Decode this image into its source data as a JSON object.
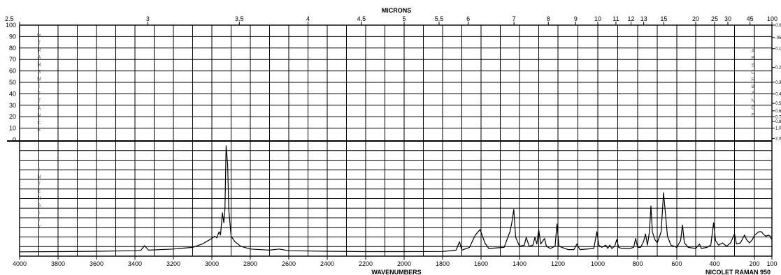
{
  "top_axis_title": "MICRONS",
  "bottom_axis_title": "WAVENUMBERS",
  "instrument": "NICOLET RAMAN 950",
  "left_upper_label": "% TRANSMITTANCE",
  "left_lower_label": "INTENSITY",
  "right_upper_label": "ABSORBANCE",
  "chart_data": {
    "type": "line",
    "x_axis": {
      "label": "WAVENUMBERS",
      "range": [
        4000,
        100
      ],
      "ticks": [
        4000,
        3800,
        3600,
        3400,
        3200,
        3000,
        2800,
        2600,
        2400,
        2200,
        2000,
        1800,
        1600,
        1400,
        1200,
        1000,
        800,
        600,
        400,
        200,
        100
      ]
    },
    "top_axis": {
      "label": "MICRONS",
      "ticks": [
        "2.5",
        "3",
        "3.5",
        "4",
        "4.5",
        "5",
        "5.5",
        "6",
        "7",
        "8",
        "9",
        "10",
        "11",
        "12",
        "13",
        "15",
        "20",
        "25",
        "30",
        "45",
        "100"
      ]
    },
    "transmittance_axis": {
      "label": "% TRANSMITTANCE",
      "range": [
        0,
        100
      ],
      "ticks": [
        "100",
        "90",
        "80",
        "70",
        "60",
        "50",
        "40",
        "30",
        "20",
        "10",
        "0"
      ]
    },
    "absorbance_axis": {
      "label": "ABSORBANCE",
      "ticks": [
        "0.0",
        ".05",
        "0.1",
        "0.2",
        "0.3",
        "0.4",
        "0.5",
        "0.6",
        "0.7",
        "0.8",
        "1.0",
        "2.0"
      ]
    },
    "intensity_axis": {
      "label": "INTENSITY",
      "range": [
        0,
        100
      ]
    },
    "grid": true,
    "series": [
      {
        "points": [
          [
            4000,
            2.0
          ],
          [
            3800,
            2.2
          ],
          [
            3600,
            2.5
          ],
          [
            3400,
            3.0
          ],
          [
            3370,
            3.3
          ],
          [
            3350,
            7.5
          ],
          [
            3330,
            3.5
          ],
          [
            3200,
            4.5
          ],
          [
            3100,
            6.0
          ],
          [
            3050,
            9.0
          ],
          [
            3020,
            12.0
          ],
          [
            3000,
            14.0
          ],
          [
            2985,
            16.0
          ],
          [
            2975,
            14.5
          ],
          [
            2962,
            20.0
          ],
          [
            2955,
            17.0
          ],
          [
            2945,
            37.0
          ],
          [
            2938,
            28.0
          ],
          [
            2932,
            40.0
          ],
          [
            2926,
            97.0
          ],
          [
            2918,
            80.0
          ],
          [
            2912,
            40.0
          ],
          [
            2900,
            16.0
          ],
          [
            2880,
            11.0
          ],
          [
            2850,
            7.0
          ],
          [
            2800,
            4.5
          ],
          [
            2700,
            3.5
          ],
          [
            2650,
            4.5
          ],
          [
            2600,
            3.0
          ],
          [
            2400,
            2.5
          ],
          [
            2200,
            2.2
          ],
          [
            2000,
            2.2
          ],
          [
            1800,
            2.3
          ],
          [
            1730,
            3.5
          ],
          [
            1712,
            11.0
          ],
          [
            1700,
            3.5
          ],
          [
            1660,
            6.0
          ],
          [
            1630,
            17.0
          ],
          [
            1605,
            22.0
          ],
          [
            1580,
            10.0
          ],
          [
            1560,
            5.0
          ],
          [
            1480,
            6.0
          ],
          [
            1450,
            20.0
          ],
          [
            1440,
            28.0
          ],
          [
            1430,
            40.0
          ],
          [
            1420,
            15.0
          ],
          [
            1400,
            7.0
          ],
          [
            1375,
            8.0
          ],
          [
            1365,
            15.0
          ],
          [
            1350,
            7.0
          ],
          [
            1330,
            8.0
          ],
          [
            1320,
            15.0
          ],
          [
            1310,
            9.0
          ],
          [
            1300,
            22.0
          ],
          [
            1290,
            9.0
          ],
          [
            1270,
            14.0
          ],
          [
            1260,
            7.0
          ],
          [
            1240,
            5.0
          ],
          [
            1215,
            7.0
          ],
          [
            1205,
            27.0
          ],
          [
            1195,
            7.0
          ],
          [
            1150,
            4.0
          ],
          [
            1120,
            4.0
          ],
          [
            1105,
            9.0
          ],
          [
            1090,
            4.0
          ],
          [
            1020,
            5.0
          ],
          [
            1005,
            20.0
          ],
          [
            995,
            8.0
          ],
          [
            980,
            6.0
          ],
          [
            960,
            8.0
          ],
          [
            950,
            5.0
          ],
          [
            940,
            8.0
          ],
          [
            930,
            5.0
          ],
          [
            915,
            7.0
          ],
          [
            905,
            13.0
          ],
          [
            895,
            6.0
          ],
          [
            880,
            5.0
          ],
          [
            840,
            5.0
          ],
          [
            820,
            6.0
          ],
          [
            810,
            14.0
          ],
          [
            800,
            6.0
          ],
          [
            785,
            6.0
          ],
          [
            770,
            11.0
          ],
          [
            760,
            18.0
          ],
          [
            750,
            8.0
          ],
          [
            740,
            20.0
          ],
          [
            732,
            43.0
          ],
          [
            725,
            20.0
          ],
          [
            712,
            13.0
          ],
          [
            700,
            10.0
          ],
          [
            680,
            20.0
          ],
          [
            668,
            55.0
          ],
          [
            660,
            40.0
          ],
          [
            648,
            16.0
          ],
          [
            630,
            8.0
          ],
          [
            600,
            6.0
          ],
          [
            580,
            12.0
          ],
          [
            570,
            26.0
          ],
          [
            560,
            10.0
          ],
          [
            540,
            6.0
          ],
          [
            500,
            5.0
          ],
          [
            480,
            9.0
          ],
          [
            470,
            5.0
          ],
          [
            440,
            6.0
          ],
          [
            420,
            8.0
          ],
          [
            405,
            28.0
          ],
          [
            395,
            12.0
          ],
          [
            380,
            8.0
          ],
          [
            360,
            10.0
          ],
          [
            340,
            7.0
          ],
          [
            320,
            10.0
          ],
          [
            300,
            18.0
          ],
          [
            290,
            9.0
          ],
          [
            270,
            10.0
          ],
          [
            250,
            17.0
          ],
          [
            240,
            13.0
          ],
          [
            225,
            10.0
          ],
          [
            210,
            13.0
          ],
          [
            200,
            17.0
          ],
          [
            190,
            18.0
          ],
          [
            175,
            20.0
          ],
          [
            160,
            20.0
          ],
          [
            150,
            18.0
          ],
          [
            135,
            16.0
          ],
          [
            120,
            17.0
          ],
          [
            110,
            16.0
          ],
          [
            105,
            14.0
          ],
          [
            100,
            13.0
          ]
        ]
      }
    ]
  }
}
